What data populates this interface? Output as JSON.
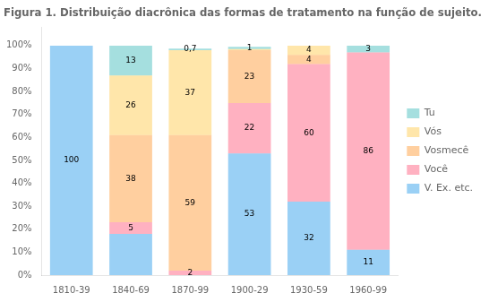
{
  "chart_data": {
    "type": "bar",
    "title": "Figura 1. Distribuição diacrônica das formas de tratamento na função de sujeito.",
    "categories": [
      "1810-39",
      "1840-69",
      "1870-99",
      "1900-29",
      "1930-59",
      "1960-99"
    ],
    "series": [
      {
        "name": "V. Ex. etc.",
        "values": [
          100,
          18,
          0,
          53,
          32,
          11
        ],
        "value_labels": [
          "100",
          null,
          null,
          "53",
          "32",
          "11"
        ]
      },
      {
        "name": "Você",
        "values": [
          0,
          5,
          2,
          22,
          60,
          86
        ],
        "value_labels": [
          null,
          "5",
          "2",
          "22",
          "60",
          "86"
        ]
      },
      {
        "name": "Vosmecê",
        "values": [
          0,
          38,
          59,
          23,
          4,
          0
        ],
        "value_labels": [
          null,
          "38",
          "59",
          "23",
          "4",
          null
        ]
      },
      {
        "name": "Vós",
        "values": [
          0,
          26,
          37,
          0.5,
          4,
          0
        ],
        "value_labels": [
          null,
          "26",
          "37",
          null,
          "4",
          null
        ]
      },
      {
        "name": "Tu",
        "values": [
          0,
          13,
          0.7,
          1,
          0,
          3
        ],
        "value_labels": [
          null,
          "13",
          "0,7",
          "1",
          null,
          "3"
        ]
      }
    ],
    "stacked": true,
    "data_labels": true,
    "legend": "right",
    "grid": false,
    "ylim": [
      0,
      108
    ],
    "yticks": [
      {
        "value": 0,
        "label": "0%"
      },
      {
        "value": 10,
        "label": "10%"
      },
      {
        "value": 20,
        "label": "20%"
      },
      {
        "value": 30,
        "label": "30%"
      },
      {
        "value": 40,
        "label": "40%"
      },
      {
        "value": 50,
        "label": "50%"
      },
      {
        "value": 60,
        "label": "60%"
      },
      {
        "value": 70,
        "label": "70%"
      },
      {
        "value": 80,
        "label": "80%"
      },
      {
        "value": 90,
        "label": "90%"
      },
      {
        "value": 100,
        "label": "100%"
      }
    ]
  }
}
